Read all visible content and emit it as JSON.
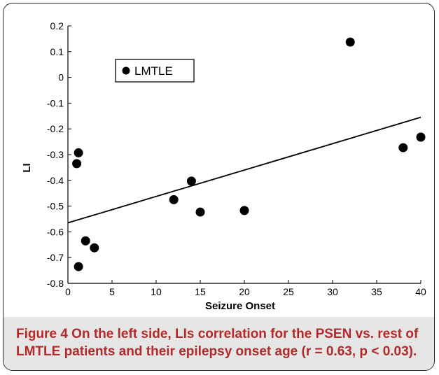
{
  "figure": {
    "caption_lead": "Figure 4",
    "caption_text": " On the left side, LIs correlation for the PSEN vs. rest of LMTLE patients and their epilepsy onset age (r = 0.63, p < 0.03)."
  },
  "chart_data": {
    "type": "scatter",
    "xlabel": "Seizure Onset",
    "ylabel": "LI",
    "xlim": [
      0,
      40
    ],
    "ylim": [
      -0.8,
      0.2
    ],
    "x_ticks": [
      "0",
      "5",
      "10",
      "15",
      "20",
      "25",
      "30",
      "35",
      "40"
    ],
    "y_ticks": [
      "0.2",
      "0.1",
      "0",
      "-0.1",
      "-0.2",
      "-0.3",
      "-0.4",
      "-0.5",
      "-0.6",
      "-0.7",
      "-0.8"
    ],
    "legend": {
      "label": "LMTLE",
      "placement": "top-left"
    },
    "series": [
      {
        "name": "LMTLE",
        "points": [
          [
            1,
            -0.335
          ],
          [
            1.2,
            -0.293
          ],
          [
            2,
            -0.635
          ],
          [
            1.2,
            -0.735
          ],
          [
            3,
            -0.662
          ],
          [
            12,
            -0.475
          ],
          [
            14,
            -0.403
          ],
          [
            15,
            -0.523
          ],
          [
            20,
            -0.517
          ],
          [
            32,
            0.137
          ],
          [
            38,
            -0.273
          ],
          [
            40,
            -0.232
          ]
        ]
      }
    ],
    "fit_line": {
      "x": [
        0,
        40
      ],
      "y": [
        -0.565,
        -0.155
      ]
    },
    "grid": false,
    "colors": {
      "marker": "#000000",
      "line": "#000000"
    }
  }
}
